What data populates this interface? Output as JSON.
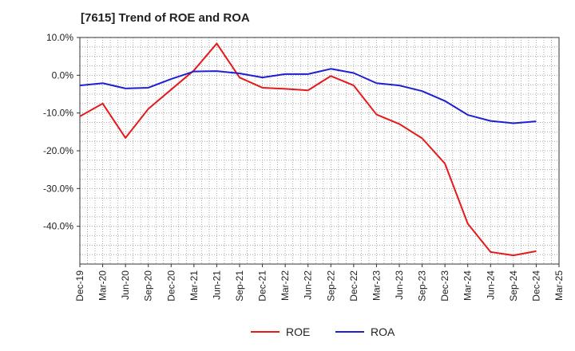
{
  "title": "[7615]  Trend of ROE and ROA",
  "chart_data": {
    "type": "line",
    "x": [
      "Dec-19",
      "Mar-20",
      "Jun-20",
      "Sep-20",
      "Dec-20",
      "Mar-21",
      "Jun-21",
      "Sep-21",
      "Dec-21",
      "Mar-22",
      "Jun-22",
      "Sep-22",
      "Dec-22",
      "Mar-23",
      "Jun-23",
      "Sep-23",
      "Dec-23",
      "Mar-24",
      "Jun-24",
      "Sep-24",
      "Dec-24",
      "Mar-25"
    ],
    "series": [
      {
        "name": "ROE",
        "color": "#e41a1c",
        "values": [
          -10.9,
          -7.5,
          -16.6,
          -8.9,
          -3.8,
          1.3,
          8.4,
          -0.6,
          -3.3,
          -3.6,
          -4.0,
          -0.2,
          -2.7,
          -10.4,
          -12.9,
          -16.7,
          -23.4,
          -39.3,
          -46.8,
          -47.7,
          -46.6,
          null
        ]
      },
      {
        "name": "ROA",
        "color": "#1f1fd1",
        "values": [
          -2.7,
          -2.1,
          -3.5,
          -3.3,
          -1.0,
          1.0,
          1.1,
          0.5,
          -0.6,
          0.3,
          0.3,
          1.7,
          0.6,
          -2.1,
          -2.7,
          -4.2,
          -6.8,
          -10.5,
          -12.1,
          -12.7,
          -12.2,
          null
        ]
      }
    ],
    "y_ticks": [
      10,
      0,
      -10,
      -20,
      -30,
      -40
    ],
    "y_tick_labels": [
      "10.0%",
      "0.0%",
      "-10.0%",
      "-20.0%",
      "-30.0%",
      "-40.0%"
    ],
    "ylim": [
      -50,
      10
    ],
    "xlabel": "",
    "ylabel": "",
    "grid": true,
    "legend": "bottom-center"
  }
}
